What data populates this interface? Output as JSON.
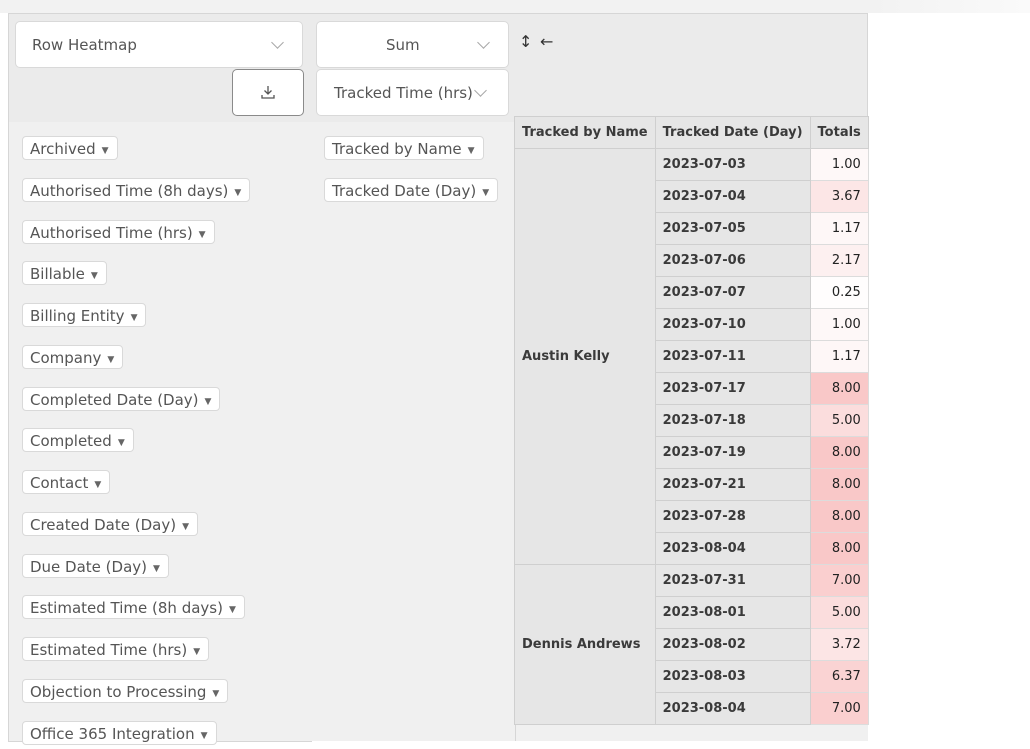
{
  "renderer": {
    "selected": "Row Heatmap"
  },
  "aggregator": {
    "selected": "Sum",
    "attribute": "Tracked Time (hrs)"
  },
  "controls": {
    "row_order": "↕",
    "col_order": "←"
  },
  "unused_attributes": [
    "Archived",
    "Authorised Time (8h days)",
    "Authorised Time (hrs)",
    "Billable",
    "Billing Entity",
    "Company",
    "Completed Date (Day)",
    "Completed",
    "Contact",
    "Created Date (Day)",
    "Due Date (Day)",
    "Estimated Time (8h days)",
    "Estimated Time (hrs)",
    "Objection to Processing",
    "Office 365 Integration"
  ],
  "row_attributes": [
    "Tracked by Name",
    "Tracked Date (Day)"
  ],
  "table": {
    "headers": [
      "Tracked by Name",
      "Tracked Date (Day)",
      "Totals"
    ],
    "groups": [
      {
        "name": "Austin Kelly",
        "rows": [
          {
            "date": "2023-07-03",
            "total": "1.00",
            "heat": 0.125
          },
          {
            "date": "2023-07-04",
            "total": "3.67",
            "heat": 0.46
          },
          {
            "date": "2023-07-05",
            "total": "1.17",
            "heat": 0.146
          },
          {
            "date": "2023-07-06",
            "total": "2.17",
            "heat": 0.27
          },
          {
            "date": "2023-07-07",
            "total": "0.25",
            "heat": 0.03
          },
          {
            "date": "2023-07-10",
            "total": "1.00",
            "heat": 0.125
          },
          {
            "date": "2023-07-11",
            "total": "1.17",
            "heat": 0.146
          },
          {
            "date": "2023-07-17",
            "total": "8.00",
            "heat": 1.0
          },
          {
            "date": "2023-07-18",
            "total": "5.00",
            "heat": 0.625
          },
          {
            "date": "2023-07-19",
            "total": "8.00",
            "heat": 1.0
          },
          {
            "date": "2023-07-21",
            "total": "8.00",
            "heat": 1.0
          },
          {
            "date": "2023-07-28",
            "total": "8.00",
            "heat": 1.0
          },
          {
            "date": "2023-08-04",
            "total": "8.00",
            "heat": 1.0
          }
        ]
      },
      {
        "name": "Dennis Andrews",
        "rows": [
          {
            "date": "2023-07-31",
            "total": "7.00",
            "heat": 0.875
          },
          {
            "date": "2023-08-01",
            "total": "5.00",
            "heat": 0.625
          },
          {
            "date": "2023-08-02",
            "total": "3.72",
            "heat": 0.465
          },
          {
            "date": "2023-08-03",
            "total": "6.37",
            "heat": 0.8
          },
          {
            "date": "2023-08-04",
            "total": "7.00",
            "heat": 0.875
          }
        ]
      }
    ],
    "heat_color": "#f9c8c8"
  }
}
